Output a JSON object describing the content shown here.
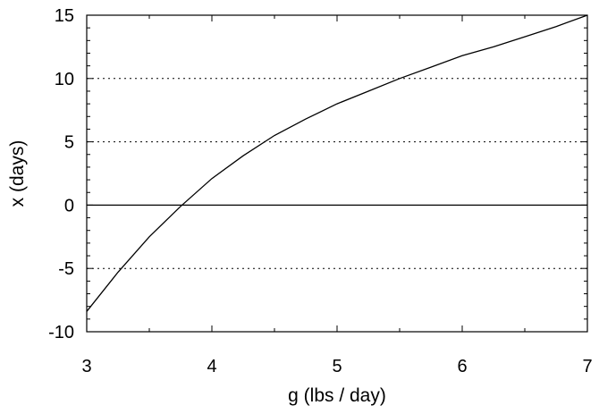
{
  "chart_data": {
    "type": "line",
    "title": "",
    "xlabel": "g (lbs / day)",
    "ylabel": "x (days)",
    "xlim": [
      3,
      7
    ],
    "ylim": [
      -10,
      15
    ],
    "x_ticks": [
      3,
      4,
      5,
      6,
      7
    ],
    "y_ticks": [
      -10,
      -5,
      0,
      5,
      10,
      15
    ],
    "y_tick_labels": [
      "-10",
      "-5",
      "0",
      "5",
      "10",
      "15"
    ],
    "x_tick_labels": [
      "3",
      "4",
      "5",
      "6",
      "7"
    ],
    "grid": {
      "y": [
        -5,
        5,
        10
      ],
      "style": "dotted"
    },
    "zero_line": true,
    "legend": "none",
    "series": [
      {
        "color": "#000000",
        "points": [
          {
            "x": 3.0,
            "y": -8.4
          },
          {
            "x": 3.25,
            "y": -5.3
          },
          {
            "x": 3.5,
            "y": -2.5
          },
          {
            "x": 3.75,
            "y": -0.1
          },
          {
            "x": 4.0,
            "y": 2.1
          },
          {
            "x": 4.25,
            "y": 3.9
          },
          {
            "x": 4.5,
            "y": 5.5
          },
          {
            "x": 4.75,
            "y": 6.8
          },
          {
            "x": 5.0,
            "y": 8.0
          },
          {
            "x": 5.25,
            "y": 9.0
          },
          {
            "x": 5.5,
            "y": 10.0
          },
          {
            "x": 5.75,
            "y": 10.9
          },
          {
            "x": 6.0,
            "y": 11.8
          },
          {
            "x": 6.25,
            "y": 12.5
          },
          {
            "x": 6.5,
            "y": 13.3
          },
          {
            "x": 6.75,
            "y": 14.1
          },
          {
            "x": 7.0,
            "y": 15.0
          }
        ]
      }
    ]
  }
}
